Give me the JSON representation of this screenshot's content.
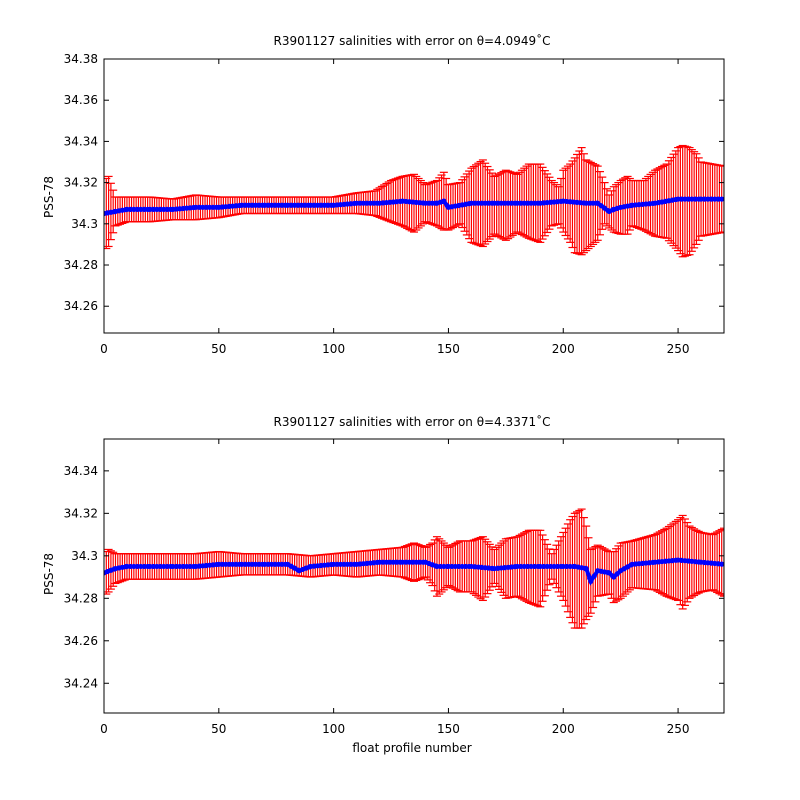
{
  "figure": {
    "background": "#ffffff",
    "error_color": "#ff0000",
    "line_color": "#0000ff"
  },
  "chart_data": [
    {
      "type": "line",
      "title": "R3901127 salinities with error on θ=4.0949˚C",
      "xlabel": "",
      "ylabel": "PSS-78",
      "xlim": [
        0,
        270
      ],
      "ylim": [
        34.247,
        34.38
      ],
      "xticks": [
        "0",
        "50",
        "100",
        "150",
        "200",
        "250"
      ],
      "yticks": [
        "34.26",
        "34.28",
        "34.3",
        "34.32",
        "34.34",
        "34.36",
        "34.38"
      ],
      "grid": false,
      "series": [
        {
          "kind": "errorbar",
          "color": "#ff0000",
          "x": [
            1,
            2,
            5,
            10,
            20,
            30,
            40,
            50,
            60,
            70,
            80,
            90,
            100,
            110,
            118,
            125,
            130,
            135,
            140,
            145,
            148,
            150,
            155,
            160,
            165,
            170,
            175,
            180,
            185,
            190,
            195,
            198,
            200,
            203,
            205,
            208,
            210,
            215,
            218,
            220,
            222,
            225,
            228,
            230,
            235,
            240,
            245,
            250,
            252,
            255,
            258,
            260,
            265,
            270
          ],
          "y": [
            34.305,
            34.306,
            34.306,
            34.307,
            34.307,
            34.307,
            34.308,
            34.308,
            34.309,
            34.309,
            34.309,
            34.309,
            34.309,
            34.31,
            34.31,
            34.311,
            34.311,
            34.31,
            34.31,
            34.31,
            34.311,
            34.308,
            34.31,
            34.309,
            34.31,
            34.309,
            34.309,
            34.31,
            34.311,
            34.31,
            34.31,
            34.309,
            34.311,
            34.31,
            34.309,
            34.311,
            34.309,
            34.31,
            34.31,
            34.306,
            34.307,
            34.308,
            34.309,
            34.31,
            34.309,
            34.31,
            34.311,
            34.312,
            34.311,
            34.311,
            34.312,
            34.312,
            34.312,
            34.312
          ],
          "err": [
            0.017,
            0.017,
            0.007,
            0.006,
            0.006,
            0.005,
            0.006,
            0.005,
            0.004,
            0.004,
            0.004,
            0.004,
            0.004,
            0.005,
            0.006,
            0.01,
            0.012,
            0.014,
            0.009,
            0.011,
            0.014,
            0.011,
            0.01,
            0.018,
            0.021,
            0.014,
            0.017,
            0.014,
            0.018,
            0.019,
            0.011,
            0.009,
            0.015,
            0.019,
            0.023,
            0.026,
            0.022,
            0.018,
            0.01,
            0.008,
            0.011,
            0.013,
            0.014,
            0.011,
            0.012,
            0.016,
            0.018,
            0.025,
            0.027,
            0.026,
            0.022,
            0.018,
            0.017,
            0.016
          ]
        },
        {
          "kind": "line",
          "color": "#0000ff",
          "x": [
            0,
            5,
            10,
            20,
            30,
            40,
            50,
            60,
            70,
            80,
            90,
            100,
            110,
            120,
            130,
            140,
            145,
            148,
            150,
            160,
            170,
            180,
            190,
            200,
            210,
            215,
            220,
            222,
            225,
            230,
            240,
            250,
            260,
            270
          ],
          "y": [
            34.305,
            34.306,
            34.307,
            34.307,
            34.307,
            34.308,
            34.308,
            34.309,
            34.309,
            34.309,
            34.309,
            34.309,
            34.31,
            34.31,
            34.311,
            34.31,
            34.31,
            34.311,
            34.308,
            34.31,
            34.31,
            34.31,
            34.31,
            34.311,
            34.31,
            34.31,
            34.306,
            34.307,
            34.308,
            34.309,
            34.31,
            34.312,
            34.312,
            34.312
          ]
        }
      ]
    },
    {
      "type": "line",
      "title": "R3901127 salinities with error on θ=4.3371˚C",
      "xlabel": "float profile number",
      "ylabel": "PSS-78",
      "xlim": [
        0,
        270
      ],
      "ylim": [
        34.226,
        34.355
      ],
      "xticks": [
        "0",
        "50",
        "100",
        "150",
        "200",
        "250"
      ],
      "yticks": [
        "34.24",
        "34.26",
        "34.28",
        "34.3",
        "34.32",
        "34.34"
      ],
      "grid": false,
      "series": [
        {
          "kind": "errorbar",
          "color": "#ff0000",
          "x": [
            1,
            2,
            5,
            10,
            20,
            30,
            40,
            50,
            60,
            70,
            80,
            90,
            100,
            110,
            120,
            130,
            135,
            140,
            143,
            145,
            150,
            155,
            160,
            165,
            170,
            175,
            180,
            185,
            190,
            195,
            200,
            203,
            205,
            208,
            210,
            212,
            215,
            220,
            222,
            225,
            230,
            240,
            245,
            250,
            252,
            255,
            258,
            260,
            265,
            270
          ],
          "y": [
            34.292,
            34.293,
            34.294,
            34.295,
            34.295,
            34.295,
            34.295,
            34.296,
            34.296,
            34.296,
            34.296,
            34.295,
            34.296,
            34.296,
            34.297,
            34.297,
            34.297,
            34.297,
            34.296,
            34.295,
            34.295,
            34.295,
            34.295,
            34.294,
            34.295,
            34.294,
            34.295,
            34.295,
            34.294,
            34.295,
            34.295,
            34.294,
            34.293,
            34.294,
            34.292,
            34.288,
            34.293,
            34.292,
            34.29,
            34.293,
            34.296,
            34.297,
            34.297,
            34.298,
            34.297,
            34.297,
            34.297,
            34.297,
            34.297,
            34.297
          ],
          "err": [
            0.01,
            0.01,
            0.007,
            0.006,
            0.006,
            0.006,
            0.006,
            0.006,
            0.005,
            0.005,
            0.005,
            0.005,
            0.005,
            0.006,
            0.006,
            0.007,
            0.009,
            0.007,
            0.01,
            0.014,
            0.009,
            0.012,
            0.012,
            0.015,
            0.008,
            0.014,
            0.014,
            0.017,
            0.018,
            0.006,
            0.016,
            0.023,
            0.027,
            0.028,
            0.022,
            0.015,
            0.012,
            0.01,
            0.012,
            0.013,
            0.011,
            0.013,
            0.016,
            0.019,
            0.022,
            0.017,
            0.015,
            0.014,
            0.013,
            0.016
          ]
        },
        {
          "kind": "line",
          "color": "#0000ff",
          "x": [
            0,
            5,
            10,
            20,
            30,
            40,
            50,
            60,
            70,
            80,
            85,
            90,
            100,
            110,
            120,
            130,
            140,
            145,
            150,
            160,
            170,
            180,
            190,
            200,
            205,
            210,
            212,
            215,
            220,
            222,
            225,
            230,
            240,
            250,
            260,
            270
          ],
          "y": [
            34.292,
            34.294,
            34.295,
            34.295,
            34.295,
            34.295,
            34.296,
            34.296,
            34.296,
            34.296,
            34.293,
            34.295,
            34.296,
            34.296,
            34.297,
            34.297,
            34.297,
            34.295,
            34.295,
            34.295,
            34.294,
            34.295,
            34.295,
            34.295,
            34.295,
            34.294,
            34.288,
            34.293,
            34.292,
            34.29,
            34.293,
            34.296,
            34.297,
            34.298,
            34.297,
            34.296
          ]
        }
      ]
    }
  ]
}
